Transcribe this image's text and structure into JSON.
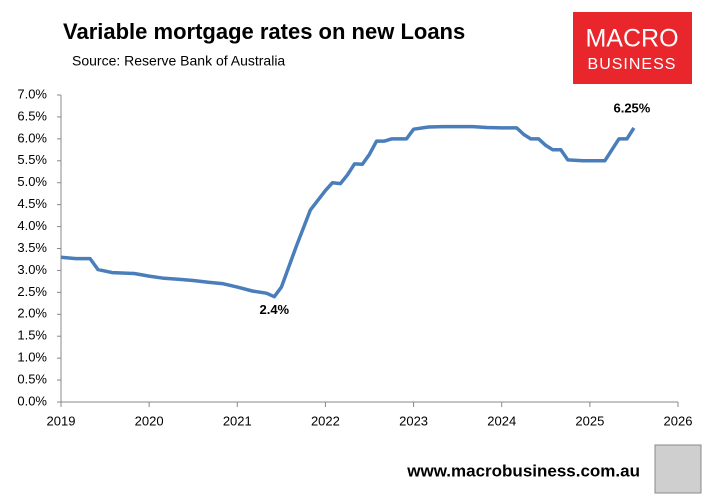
{
  "chart_data": {
    "type": "line",
    "title": "Variable mortgage rates on new Loans",
    "subtitle": "Source: Reserve Bank of Australia",
    "x": [
      2019.0,
      2019.17,
      2019.33,
      2019.42,
      2019.58,
      2019.83,
      2020.0,
      2020.17,
      2020.33,
      2020.5,
      2020.67,
      2020.83,
      2021.0,
      2021.17,
      2021.33,
      2021.42,
      2021.5,
      2021.67,
      2021.83,
      2022.0,
      2022.08,
      2022.17,
      2022.25,
      2022.33,
      2022.42,
      2022.5,
      2022.58,
      2022.67,
      2022.75,
      2022.92,
      2023.0,
      2023.17,
      2023.33,
      2023.5,
      2023.67,
      2023.83,
      2024.0,
      2024.17,
      2024.25,
      2024.33,
      2024.42,
      2024.5,
      2024.58,
      2024.67,
      2024.75,
      2024.92,
      2025.17,
      2025.33,
      2025.42,
      2025.5
    ],
    "series": [
      {
        "name": "Variable mortgage rate",
        "color": "#4a7ebb",
        "values": [
          3.3,
          3.27,
          3.27,
          3.02,
          2.95,
          2.93,
          2.87,
          2.82,
          2.8,
          2.77,
          2.73,
          2.7,
          2.62,
          2.53,
          2.48,
          2.4,
          2.62,
          3.55,
          4.38,
          4.82,
          5.0,
          4.98,
          5.18,
          5.43,
          5.42,
          5.65,
          5.95,
          5.95,
          6.0,
          6.0,
          6.22,
          6.27,
          6.28,
          6.28,
          6.28,
          6.26,
          6.25,
          6.25,
          6.1,
          6.0,
          6.0,
          5.85,
          5.75,
          5.75,
          5.52,
          5.5,
          5.5,
          6.0,
          6.0,
          6.25
        ],
        "value_labels": [
          null,
          null,
          null,
          null,
          null,
          null,
          null,
          null,
          null,
          null,
          null,
          null,
          null,
          null,
          null,
          "2.4%",
          null,
          null,
          null,
          null,
          null,
          null,
          null,
          null,
          null,
          null,
          null,
          null,
          null,
          null,
          null,
          null,
          null,
          null,
          null,
          null,
          null,
          null,
          null,
          null,
          null,
          null,
          null,
          null,
          null,
          null,
          null,
          null,
          null,
          "6.25%"
        ]
      }
    ],
    "xlim": [
      2019,
      2026
    ],
    "xticks": [
      2019,
      2020,
      2021,
      2022,
      2023,
      2024,
      2025,
      2026
    ],
    "ylim": [
      0,
      7
    ],
    "yticks": [
      {
        "value": 0,
        "label": "0.0%"
      },
      {
        "value": 0.5,
        "label": "0.5%"
      },
      {
        "value": 1,
        "label": "1.0%"
      },
      {
        "value": 1.5,
        "label": "1.5%"
      },
      {
        "value": 2,
        "label": "2.0%"
      },
      {
        "value": 2.5,
        "label": "2.5%"
      },
      {
        "value": 3,
        "label": "3.0%"
      },
      {
        "value": 3.5,
        "label": "3.5%"
      },
      {
        "value": 4,
        "label": "4.0%"
      },
      {
        "value": 4.5,
        "label": "4.5%"
      },
      {
        "value": 5,
        "label": "5.0%"
      },
      {
        "value": 5.5,
        "label": "5.5%"
      },
      {
        "value": 6,
        "label": "6.0%"
      },
      {
        "value": 6.5,
        "label": "6.5%"
      },
      {
        "value": 7,
        "label": "7.0%"
      }
    ],
    "grid": false
  },
  "logo": {
    "line1": "MACRO",
    "line2": "BUSINESS"
  },
  "website": "www.macrobusiness.com.au"
}
